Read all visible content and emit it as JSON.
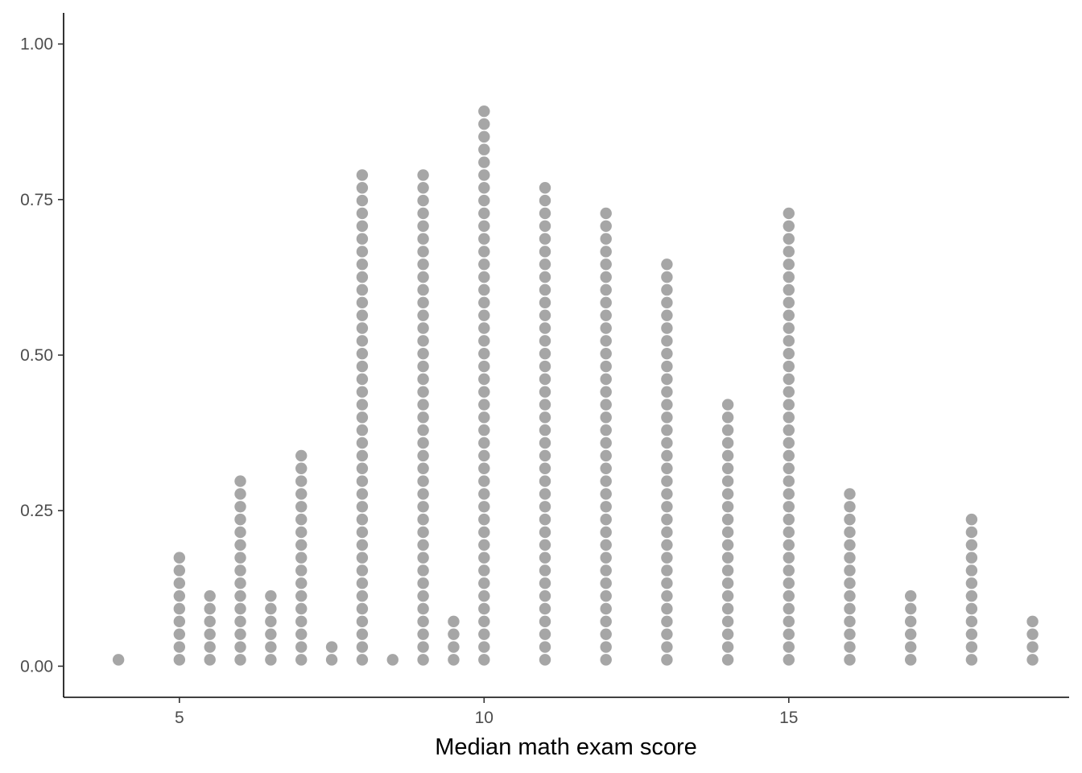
{
  "chart_data": {
    "type": "scatter",
    "subtype": "dotplot",
    "title": "",
    "xlabel": "Median math exam score",
    "ylabel": "",
    "xlim": [
      3.1,
      19.6
    ],
    "ylim": [
      -0.05,
      1.05
    ],
    "x_ticks": [
      5,
      10,
      15
    ],
    "y_ticks": [
      0.0,
      0.25,
      0.5,
      0.75,
      1.0
    ],
    "y_tick_labels": [
      "0.00",
      "0.25",
      "0.50",
      "0.75",
      "1.00"
    ],
    "grid": false,
    "dot_color": "#A6A6A6",
    "axis_color": "#000000",
    "dot_step": 0.0205,
    "columns": [
      {
        "x": 4.0,
        "count": 1
      },
      {
        "x": 5.0,
        "count": 9
      },
      {
        "x": 5.5,
        "count": 6
      },
      {
        "x": 6.0,
        "count": 15
      },
      {
        "x": 6.5,
        "count": 6
      },
      {
        "x": 7.0,
        "count": 17
      },
      {
        "x": 7.5,
        "count": 2
      },
      {
        "x": 8.0,
        "count": 39
      },
      {
        "x": 8.5,
        "count": 1
      },
      {
        "x": 9.0,
        "count": 39
      },
      {
        "x": 9.5,
        "count": 4
      },
      {
        "x": 10.0,
        "count": 44
      },
      {
        "x": 11.0,
        "count": 38
      },
      {
        "x": 12.0,
        "count": 36
      },
      {
        "x": 13.0,
        "count": 32
      },
      {
        "x": 14.0,
        "count": 21
      },
      {
        "x": 15.0,
        "count": 36
      },
      {
        "x": 16.0,
        "count": 14
      },
      {
        "x": 17.0,
        "count": 6
      },
      {
        "x": 18.0,
        "count": 12
      },
      {
        "x": 19.0,
        "count": 4
      }
    ]
  }
}
